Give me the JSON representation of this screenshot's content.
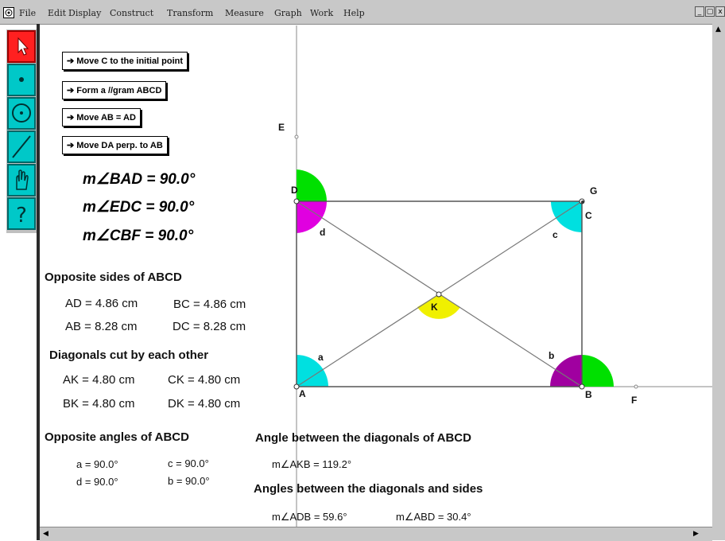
{
  "menu": [
    "File",
    "Edit",
    "Display",
    "Construct",
    "Transform",
    "Measure",
    "Graph",
    "Work",
    "Help"
  ],
  "window_controls": [
    "_",
    "▢",
    "x"
  ],
  "toolbox": [
    {
      "name": "pointer-tool",
      "icon": "arrow-pointer-icon",
      "selected": true
    },
    {
      "name": "point-tool",
      "icon": "point-icon"
    },
    {
      "name": "circle-tool",
      "icon": "circle-icon"
    },
    {
      "name": "line-tool",
      "icon": "line-segment-icon"
    },
    {
      "name": "text-tool",
      "icon": "hand-icon"
    },
    {
      "name": "info-tool",
      "icon": "question-mark-icon"
    }
  ],
  "buttons": {
    "move_c": "Move C to the initial point",
    "form_gram": "Form a //gram ABCD",
    "move_ab": "Move AB = AD",
    "move_da": "Move DA perp. to AB"
  },
  "measures": {
    "bad": "m∠BAD = 90.0°",
    "edc": "m∠EDC = 90.0°",
    "cbf": "m∠CBF = 90.0°"
  },
  "sides": {
    "heading": "Opposite sides of ABCD",
    "ad": "AD = 4.86 cm",
    "bc": "BC = 4.86 cm",
    "ab": "AB = 8.28 cm",
    "dc": "DC = 8.28 cm"
  },
  "diagonals": {
    "heading": "Diagonals cut by each other",
    "ak": "AK = 4.80 cm",
    "ck": "CK = 4.80 cm",
    "bk": "BK = 4.80 cm",
    "dk": "DK = 4.80 cm"
  },
  "angles": {
    "heading": "Opposite angles of ABCD",
    "a": "a = 90.0°",
    "c": "c = 90.0°",
    "d": "d = 90.0°",
    "b": "b = 90.0°"
  },
  "between": {
    "heading": "Angle between the diagonals of ABCD",
    "akb": "m∠AKB = 119.2°",
    "heading2": "Angles between the diagonals and sides",
    "adb": "m∠ADB = 59.6°",
    "abd": "m∠ABD = 30.4°"
  },
  "points": {
    "A": "A",
    "B": "B",
    "C": "C",
    "D": "D",
    "E": "E",
    "F": "F",
    "G": "G",
    "K": "K"
  },
  "angle_marks": {
    "a": "a",
    "b": "b",
    "c": "c",
    "d": "d"
  },
  "colors": {
    "cyan": "#00e0e0",
    "magenta": "#e000e0",
    "green": "#00e000",
    "yellow": "#f0f000",
    "purple": "#a000a0",
    "toolbar_cyan": "#00c8c8",
    "pointer_red": "#ff2020"
  }
}
